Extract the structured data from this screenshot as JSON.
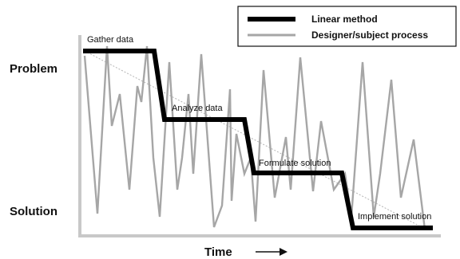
{
  "axis": {
    "top_label": "Problem",
    "bottom_label": "Solution",
    "x_label": "Time"
  },
  "legend": {
    "linear": "Linear method",
    "designer": "Designer/subject process"
  },
  "stages": [
    {
      "label": "Gather data"
    },
    {
      "label": "Analyze data"
    },
    {
      "label": "Formulate solution"
    },
    {
      "label": "Implement solution"
    }
  ],
  "colors": {
    "linear_line": "#000000",
    "designer_line": "#a6a6a6",
    "axis": "#c8c8c8",
    "diagonal": "#b4b4b4"
  },
  "icons": {
    "time_arrow": "right-arrow-icon"
  }
}
